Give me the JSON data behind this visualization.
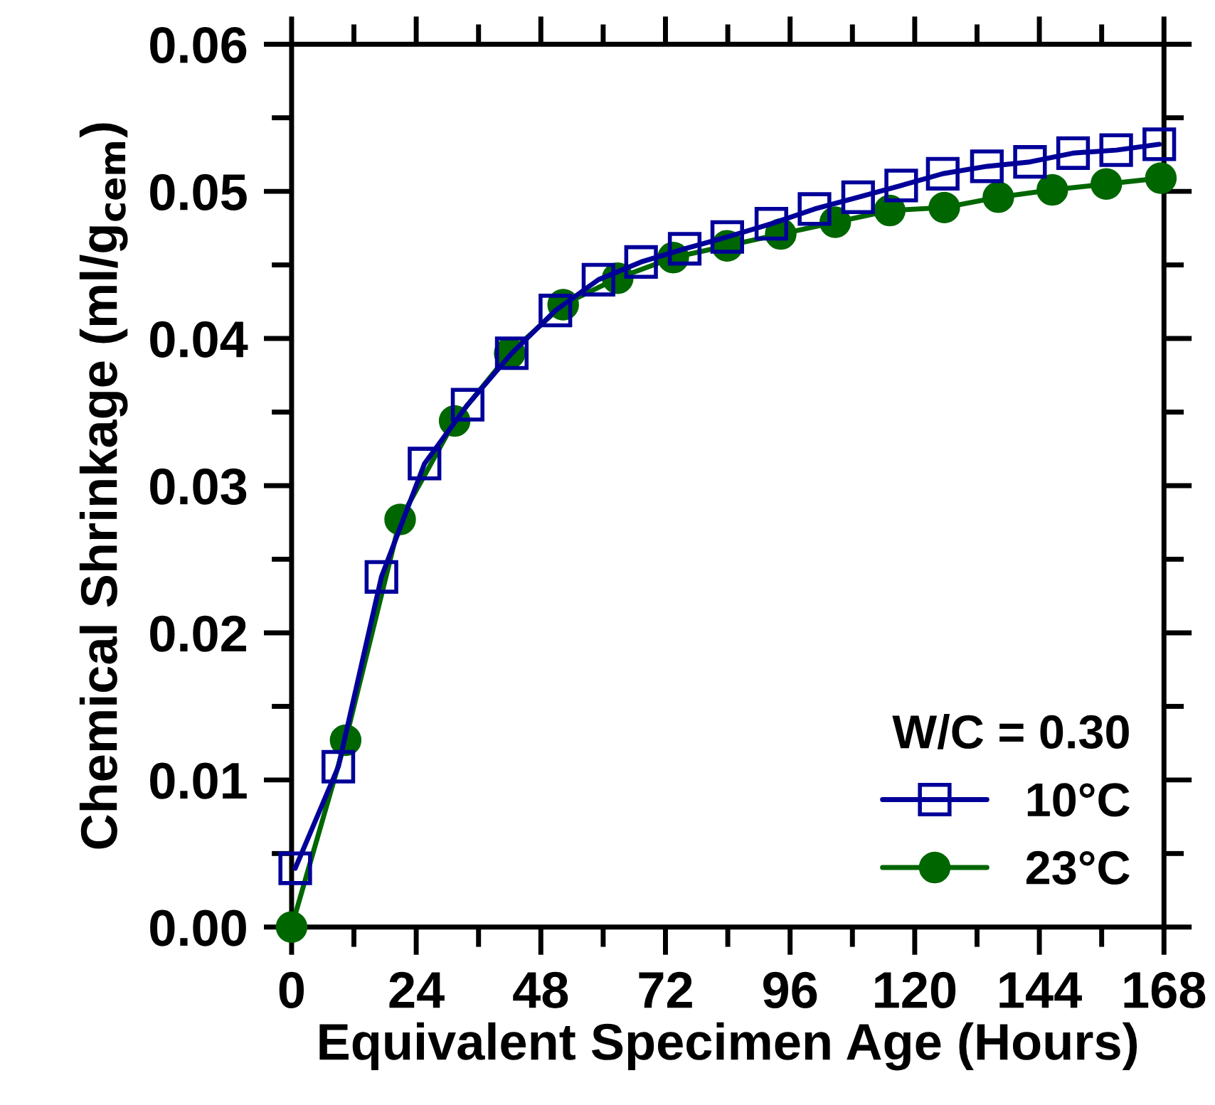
{
  "chart_data": {
    "type": "line",
    "xlabel": "Equivalent Specimen Age (Hours)",
    "ylabel": "Chemical Shrinkage (ml/g$_{cem}$)",
    "legend_title": "W/C = 0.30",
    "xlim": [
      0,
      168
    ],
    "xticks": [
      0,
      24,
      48,
      72,
      96,
      120,
      144,
      168
    ],
    "ylim": [
      0,
      0.06
    ],
    "yticks": [
      {
        "value": 0,
        "label": "0.00"
      },
      {
        "value": 0.01,
        "label": "0.01"
      },
      {
        "value": 0.02,
        "label": "0.02"
      },
      {
        "value": 0.03,
        "label": "0.03"
      },
      {
        "value": 0.04,
        "label": "0.04"
      },
      {
        "value": 0.05,
        "label": "0.05"
      },
      {
        "value": 0.06,
        "label": "0.06"
      }
    ],
    "grid": false,
    "legend": "bottom right",
    "series": [
      {
        "name": "10°C",
        "color": "#000099",
        "marker": "square",
        "x": [
          0.7,
          9.0,
          17.3,
          25.6,
          33.9,
          42.4,
          50.8,
          59.1,
          67.3,
          75.7,
          83.9,
          92.4,
          100.7,
          109.1,
          117.4,
          125.4,
          133.9,
          142.2,
          150.5,
          158.8,
          167.1
        ],
        "values": [
          0.004,
          0.0109,
          0.0238,
          0.0315,
          0.0355,
          0.039,
          0.0419,
          0.044,
          0.0452,
          0.0461,
          0.0469,
          0.0478,
          0.0488,
          0.0496,
          0.0504,
          0.0512,
          0.0517,
          0.052,
          0.0526,
          0.0528,
          0.0532
        ]
      },
      {
        "name": "23°C",
        "color": "#006600",
        "marker": "circle",
        "x": [
          0,
          10.4,
          20.9,
          31.4,
          42.0,
          52.3,
          62.8,
          73.5,
          83.9,
          94.2,
          104.7,
          115.2,
          125.7,
          136.1,
          146.5,
          156.9,
          167.4
        ],
        "values": [
          0.0,
          0.0127,
          0.0277,
          0.0344,
          0.039,
          0.0423,
          0.0441,
          0.0455,
          0.0463,
          0.0471,
          0.0479,
          0.0487,
          0.0489,
          0.0496,
          0.0501,
          0.0505,
          0.0509
        ]
      }
    ]
  }
}
